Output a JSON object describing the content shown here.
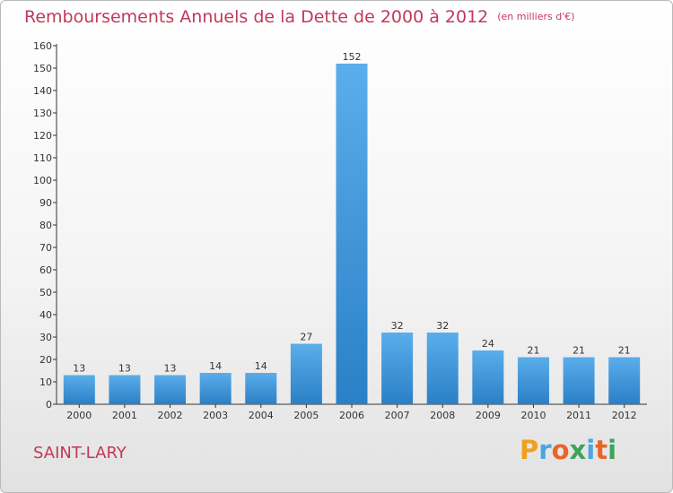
{
  "chart_data": {
    "type": "bar",
    "title": "Remboursements Annuels de la Dette de 2000 à 2012",
    "subtitle": "(en milliers d'€)",
    "categories": [
      "2000",
      "2001",
      "2002",
      "2003",
      "2004",
      "2005",
      "2006",
      "2007",
      "2008",
      "2009",
      "2010",
      "2011",
      "2012"
    ],
    "values": [
      13,
      13,
      13,
      14,
      14,
      27,
      152,
      32,
      32,
      24,
      21,
      21,
      21
    ],
    "yticks": [
      0,
      10,
      20,
      30,
      40,
      50,
      60,
      70,
      80,
      90,
      100,
      110,
      120,
      130,
      140,
      150,
      160
    ],
    "ylim": [
      0,
      160
    ],
    "xlabel": "",
    "ylabel": "",
    "grid": false,
    "bar_color": "#4a9fe0"
  },
  "footer": {
    "city": "SAINT-LARY",
    "logo_letters": [
      {
        "ch": "P",
        "color": "#f0a01c"
      },
      {
        "ch": "r",
        "color": "#4aa6e0"
      },
      {
        "ch": "o",
        "color": "#e8652a"
      },
      {
        "ch": "x",
        "color": "#3aa55a"
      },
      {
        "ch": "i",
        "color": "#4aa6e0"
      },
      {
        "ch": "t",
        "color": "#e8652a"
      },
      {
        "ch": "i",
        "color": "#3aa55a"
      }
    ]
  }
}
